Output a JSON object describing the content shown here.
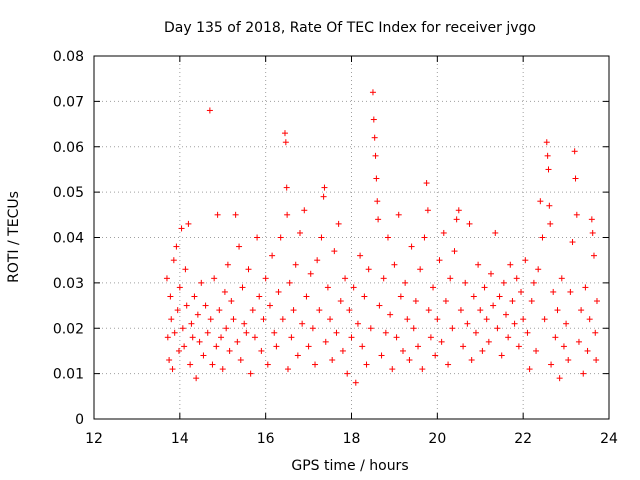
{
  "chart_data": {
    "type": "scatter",
    "title": "Day 135 of 2018, Rate Of TEC Index for receiver jvgo",
    "xlabel": "GPS time / hours",
    "ylabel": "ROTI / TECUs",
    "xlim": [
      12,
      24
    ],
    "ylim": [
      0,
      0.08
    ],
    "x_ticks": [
      12,
      14,
      16,
      18,
      20,
      22,
      24
    ],
    "x_tick_labels": [
      "12",
      "14",
      "16",
      "18",
      "20",
      "22",
      "24"
    ],
    "y_ticks": [
      0,
      0.01,
      0.02,
      0.03,
      0.04,
      0.05,
      0.06,
      0.07,
      0.08
    ],
    "y_tick_labels": [
      "0",
      "0.01",
      "0.02",
      "0.03",
      "0.04",
      "0.05",
      "0.06",
      "0.07",
      "0.08"
    ],
    "grid": true,
    "marker": "+",
    "marker_color": "#ff0000",
    "series": [
      {
        "name": "ROTI",
        "points": [
          [
            13.7,
            0.031
          ],
          [
            13.72,
            0.018
          ],
          [
            13.75,
            0.013
          ],
          [
            13.78,
            0.027
          ],
          [
            13.8,
            0.022
          ],
          [
            13.83,
            0.011
          ],
          [
            13.86,
            0.035
          ],
          [
            13.88,
            0.019
          ],
          [
            13.92,
            0.038
          ],
          [
            13.95,
            0.024
          ],
          [
            13.98,
            0.015
          ],
          [
            14.0,
            0.029
          ],
          [
            14.04,
            0.042
          ],
          [
            14.07,
            0.02
          ],
          [
            14.1,
            0.016
          ],
          [
            14.13,
            0.033
          ],
          [
            14.16,
            0.025
          ],
          [
            14.2,
            0.043
          ],
          [
            14.24,
            0.012
          ],
          [
            14.27,
            0.021
          ],
          [
            14.3,
            0.018
          ],
          [
            14.34,
            0.027
          ],
          [
            14.38,
            0.009
          ],
          [
            14.42,
            0.023
          ],
          [
            14.46,
            0.017
          ],
          [
            14.5,
            0.03
          ],
          [
            14.55,
            0.014
          ],
          [
            14.6,
            0.025
          ],
          [
            14.65,
            0.019
          ],
          [
            14.7,
            0.068
          ],
          [
            14.72,
            0.022
          ],
          [
            14.76,
            0.012
          ],
          [
            14.8,
            0.031
          ],
          [
            14.85,
            0.016
          ],
          [
            14.88,
            0.045
          ],
          [
            14.92,
            0.024
          ],
          [
            14.96,
            0.018
          ],
          [
            15.0,
            0.011
          ],
          [
            15.05,
            0.028
          ],
          [
            15.08,
            0.02
          ],
          [
            15.12,
            0.034
          ],
          [
            15.16,
            0.015
          ],
          [
            15.2,
            0.026
          ],
          [
            15.25,
            0.022
          ],
          [
            15.3,
            0.045
          ],
          [
            15.34,
            0.017
          ],
          [
            15.38,
            0.038
          ],
          [
            15.42,
            0.013
          ],
          [
            15.46,
            0.029
          ],
          [
            15.5,
            0.021
          ],
          [
            15.55,
            0.019
          ],
          [
            15.6,
            0.033
          ],
          [
            15.65,
            0.01
          ],
          [
            15.7,
            0.024
          ],
          [
            15.75,
            0.018
          ],
          [
            15.8,
            0.04
          ],
          [
            15.85,
            0.027
          ],
          [
            15.9,
            0.015
          ],
          [
            15.95,
            0.022
          ],
          [
            16.0,
            0.031
          ],
          [
            16.05,
            0.012
          ],
          [
            16.1,
            0.025
          ],
          [
            16.15,
            0.036
          ],
          [
            16.2,
            0.019
          ],
          [
            16.25,
            0.016
          ],
          [
            16.3,
            0.028
          ],
          [
            16.35,
            0.04
          ],
          [
            16.4,
            0.022
          ],
          [
            16.45,
            0.063
          ],
          [
            16.47,
            0.061
          ],
          [
            16.49,
            0.051
          ],
          [
            16.5,
            0.045
          ],
          [
            16.52,
            0.011
          ],
          [
            16.56,
            0.03
          ],
          [
            16.6,
            0.018
          ],
          [
            16.65,
            0.024
          ],
          [
            16.7,
            0.034
          ],
          [
            16.75,
            0.014
          ],
          [
            16.8,
            0.041
          ],
          [
            16.85,
            0.021
          ],
          [
            16.9,
            0.046
          ],
          [
            16.95,
            0.027
          ],
          [
            17.0,
            0.016
          ],
          [
            17.05,
            0.032
          ],
          [
            17.1,
            0.02
          ],
          [
            17.15,
            0.012
          ],
          [
            17.2,
            0.035
          ],
          [
            17.25,
            0.024
          ],
          [
            17.3,
            0.04
          ],
          [
            17.35,
            0.049
          ],
          [
            17.37,
            0.051
          ],
          [
            17.4,
            0.017
          ],
          [
            17.45,
            0.029
          ],
          [
            17.5,
            0.022
          ],
          [
            17.55,
            0.013
          ],
          [
            17.6,
            0.037
          ],
          [
            17.65,
            0.019
          ],
          [
            17.7,
            0.043
          ],
          [
            17.75,
            0.026
          ],
          [
            17.8,
            0.015
          ],
          [
            17.85,
            0.031
          ],
          [
            17.9,
            0.01
          ],
          [
            17.95,
            0.024
          ],
          [
            18.0,
            0.018
          ],
          [
            18.05,
            0.029
          ],
          [
            18.1,
            0.008
          ],
          [
            18.15,
            0.021
          ],
          [
            18.2,
            0.036
          ],
          [
            18.25,
            0.016
          ],
          [
            18.3,
            0.027
          ],
          [
            18.35,
            0.012
          ],
          [
            18.4,
            0.033
          ],
          [
            18.45,
            0.02
          ],
          [
            18.5,
            0.072
          ],
          [
            18.52,
            0.066
          ],
          [
            18.54,
            0.062
          ],
          [
            18.56,
            0.058
          ],
          [
            18.58,
            0.053
          ],
          [
            18.6,
            0.048
          ],
          [
            18.62,
            0.044
          ],
          [
            18.65,
            0.025
          ],
          [
            18.7,
            0.014
          ],
          [
            18.75,
            0.031
          ],
          [
            18.8,
            0.019
          ],
          [
            18.85,
            0.04
          ],
          [
            18.9,
            0.023
          ],
          [
            18.95,
            0.011
          ],
          [
            19.0,
            0.034
          ],
          [
            19.05,
            0.018
          ],
          [
            19.1,
            0.045
          ],
          [
            19.15,
            0.027
          ],
          [
            19.2,
            0.015
          ],
          [
            19.25,
            0.03
          ],
          [
            19.3,
            0.022
          ],
          [
            19.35,
            0.013
          ],
          [
            19.4,
            0.038
          ],
          [
            19.45,
            0.02
          ],
          [
            19.5,
            0.026
          ],
          [
            19.55,
            0.016
          ],
          [
            19.6,
            0.033
          ],
          [
            19.65,
            0.011
          ],
          [
            19.7,
            0.04
          ],
          [
            19.75,
            0.052
          ],
          [
            19.78,
            0.046
          ],
          [
            19.8,
            0.024
          ],
          [
            19.85,
            0.018
          ],
          [
            19.9,
            0.029
          ],
          [
            19.95,
            0.014
          ],
          [
            20.0,
            0.022
          ],
          [
            20.05,
            0.035
          ],
          [
            20.1,
            0.017
          ],
          [
            20.15,
            0.041
          ],
          [
            20.2,
            0.026
          ],
          [
            20.25,
            0.012
          ],
          [
            20.3,
            0.031
          ],
          [
            20.35,
            0.02
          ],
          [
            20.4,
            0.037
          ],
          [
            20.45,
            0.044
          ],
          [
            20.5,
            0.046
          ],
          [
            20.55,
            0.024
          ],
          [
            20.6,
            0.016
          ],
          [
            20.65,
            0.03
          ],
          [
            20.7,
            0.021
          ],
          [
            20.75,
            0.043
          ],
          [
            20.8,
            0.013
          ],
          [
            20.85,
            0.027
          ],
          [
            20.9,
            0.019
          ],
          [
            20.95,
            0.034
          ],
          [
            21.0,
            0.024
          ],
          [
            21.05,
            0.015
          ],
          [
            21.1,
            0.029
          ],
          [
            21.15,
            0.022
          ],
          [
            21.2,
            0.017
          ],
          [
            21.25,
            0.032
          ],
          [
            21.3,
            0.025
          ],
          [
            21.35,
            0.041
          ],
          [
            21.4,
            0.02
          ],
          [
            21.45,
            0.027
          ],
          [
            21.5,
            0.014
          ],
          [
            21.55,
            0.03
          ],
          [
            21.6,
            0.023
          ],
          [
            21.65,
            0.018
          ],
          [
            21.7,
            0.034
          ],
          [
            21.75,
            0.026
          ],
          [
            21.8,
            0.021
          ],
          [
            21.85,
            0.031
          ],
          [
            21.9,
            0.016
          ],
          [
            21.95,
            0.028
          ],
          [
            22.0,
            0.022
          ],
          [
            22.05,
            0.035
          ],
          [
            22.1,
            0.019
          ],
          [
            22.15,
            0.011
          ],
          [
            22.2,
            0.026
          ],
          [
            22.25,
            0.03
          ],
          [
            22.3,
            0.015
          ],
          [
            22.35,
            0.033
          ],
          [
            22.4,
            0.048
          ],
          [
            22.45,
            0.04
          ],
          [
            22.5,
            0.022
          ],
          [
            22.55,
            0.061
          ],
          [
            22.57,
            0.058
          ],
          [
            22.59,
            0.055
          ],
          [
            22.61,
            0.047
          ],
          [
            22.63,
            0.043
          ],
          [
            22.65,
            0.012
          ],
          [
            22.7,
            0.028
          ],
          [
            22.75,
            0.018
          ],
          [
            22.8,
            0.024
          ],
          [
            22.85,
            0.009
          ],
          [
            22.9,
            0.031
          ],
          [
            22.95,
            0.016
          ],
          [
            23.0,
            0.021
          ],
          [
            23.05,
            0.013
          ],
          [
            23.1,
            0.028
          ],
          [
            23.15,
            0.039
          ],
          [
            23.2,
            0.059
          ],
          [
            23.22,
            0.053
          ],
          [
            23.25,
            0.045
          ],
          [
            23.3,
            0.017
          ],
          [
            23.35,
            0.024
          ],
          [
            23.4,
            0.01
          ],
          [
            23.45,
            0.029
          ],
          [
            23.5,
            0.015
          ],
          [
            23.55,
            0.022
          ],
          [
            23.6,
            0.044
          ],
          [
            23.62,
            0.041
          ],
          [
            23.65,
            0.036
          ],
          [
            23.68,
            0.019
          ],
          [
            23.7,
            0.013
          ],
          [
            23.72,
            0.026
          ]
        ]
      }
    ]
  }
}
